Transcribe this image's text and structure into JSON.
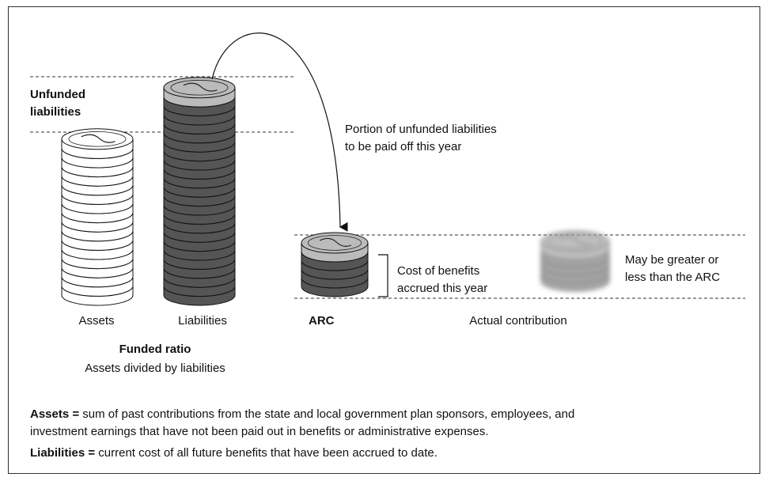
{
  "left": {
    "unfunded_label": [
      "Unfunded",
      "liabilities"
    ],
    "assets_label": "Assets",
    "liabilities_label": "Liabilities",
    "funded_ratio": {
      "title": "Funded ratio",
      "description": "Assets divided by liabilities"
    }
  },
  "arrow_note": [
    "Portion of unfunded liabilities",
    "to be paid off this year"
  ],
  "arc": {
    "label": "ARC",
    "note": [
      "Cost of benefits",
      "accrued this year"
    ]
  },
  "actual": {
    "label": "Actual contribution",
    "note": [
      "May be greater or",
      "less than the ARC"
    ]
  },
  "definitions": [
    {
      "term": "Assets =",
      "text": [
        " sum of past contributions from the state and local government plan sponsors, employees, and",
        "investment earnings that have not been paid out in benefits or administrative expenses."
      ]
    },
    {
      "term": "Liabilities =",
      "text": " current cost of all future benefits that have been accrued to date."
    }
  ]
}
